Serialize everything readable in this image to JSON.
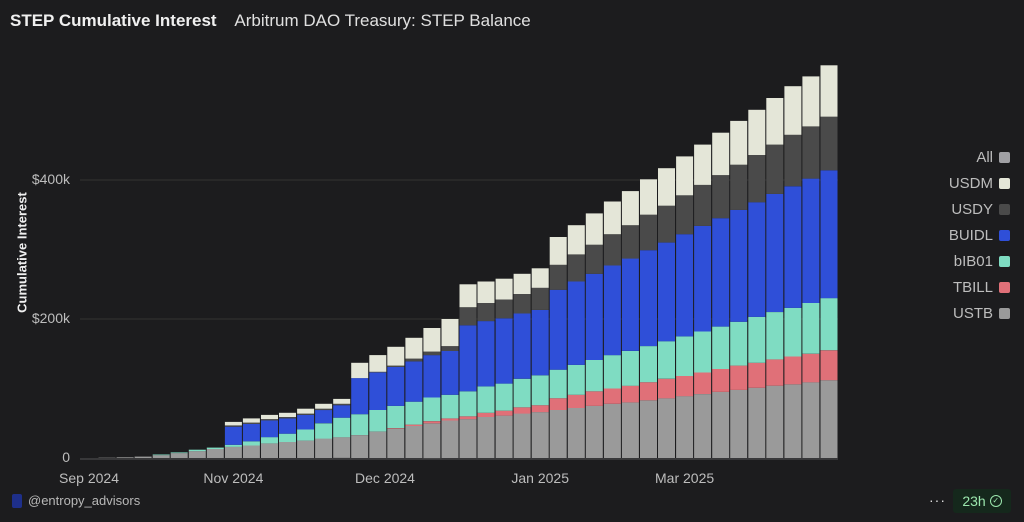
{
  "header": {
    "title": "STEP Cumulative Interest",
    "subtitle": "Arbitrum DAO Treasury: STEP Balance"
  },
  "footer": {
    "author": "@entropy_advisors",
    "more": "···",
    "freshness": "23h"
  },
  "chart_data": {
    "type": "bar",
    "stacked": true,
    "title": "STEP Cumulative Interest",
    "xlabel": "",
    "ylabel": "Cumulative Interest",
    "ylim": [
      0,
      600
    ],
    "y_ticks": [
      {
        "label": "0",
        "value": 0
      },
      {
        "label": "$200k",
        "value": 200
      },
      {
        "label": "$400k",
        "value": 400
      }
    ],
    "x_ticks": [
      {
        "label": "Sep 2024",
        "index": 0
      },
      {
        "label": "Nov 2024",
        "index": 8
      },
      {
        "label": "Dec 2024",
        "index": 16.4
      },
      {
        "label": "Jan 2025",
        "index": 25
      },
      {
        "label": "Mar 2025",
        "index": 33
      }
    ],
    "units": "thousands USD",
    "legend_position": "right",
    "legend": [
      {
        "name": "All",
        "color": "#a0a0a4"
      },
      {
        "name": "USDM",
        "color": "#e4e6d8"
      },
      {
        "name": "USDY",
        "color": "#4a4a4a"
      },
      {
        "name": "BUIDL",
        "color": "#2f4fd8"
      },
      {
        "name": "bIB01",
        "color": "#7fdcc2"
      },
      {
        "name": "TBILL",
        "color": "#e07078"
      },
      {
        "name": "USTB",
        "color": "#9a9a9a"
      }
    ],
    "series": [
      {
        "name": "USTB",
        "color": "#9a9a9a",
        "values": [
          0,
          0.5,
          1,
          2,
          4,
          7,
          10,
          13,
          16,
          18,
          21,
          23,
          25,
          28,
          30,
          33,
          38,
          42,
          46,
          50,
          54,
          56,
          59,
          61,
          64,
          66,
          69,
          72,
          75,
          78,
          80,
          83,
          86,
          89,
          92,
          95,
          98,
          101,
          104,
          106,
          109,
          112
        ]
      },
      {
        "name": "TBILL",
        "color": "#e07078",
        "values": [
          0,
          0,
          0,
          0,
          0,
          0,
          0,
          0,
          0,
          0,
          0,
          0,
          0,
          0,
          0,
          0,
          0,
          1,
          2,
          3,
          3,
          4,
          6,
          7,
          9,
          10,
          17,
          19,
          21,
          22,
          24,
          26,
          28,
          29,
          31,
          33,
          35,
          36,
          38,
          40,
          41,
          43
        ]
      },
      {
        "name": "bIB01",
        "color": "#7fdcc2",
        "values": [
          0,
          0,
          0,
          0,
          1,
          1,
          2,
          2,
          3,
          6,
          9,
          12,
          16,
          22,
          28,
          30,
          31,
          32,
          33,
          34,
          34,
          36,
          38,
          39,
          41,
          43,
          41,
          43,
          45,
          48,
          50,
          52,
          54,
          57,
          59,
          61,
          63,
          66,
          68,
          70,
          73,
          75
        ]
      },
      {
        "name": "BUIDL",
        "color": "#2f4fd8",
        "values": [
          0,
          0,
          0,
          0,
          0,
          0,
          0,
          0,
          26,
          25,
          24,
          22,
          21,
          19,
          18,
          52,
          54,
          56,
          58,
          61,
          63,
          95,
          94,
          94,
          94,
          94,
          115,
          120,
          124,
          129,
          133,
          138,
          142,
          147,
          152,
          156,
          161,
          165,
          170,
          175,
          179,
          184
        ]
      },
      {
        "name": "USDY",
        "color": "#4a4a4a",
        "values": [
          0,
          0,
          0,
          0,
          0,
          0,
          0,
          0,
          2,
          2,
          2,
          2,
          2,
          2,
          2,
          0,
          1,
          2,
          4,
          5,
          7,
          26,
          26,
          27,
          28,
          32,
          36,
          39,
          42,
          45,
          48,
          51,
          53,
          56,
          59,
          62,
          65,
          68,
          71,
          74,
          75,
          77
        ]
      },
      {
        "name": "USDM",
        "color": "#e4e6d8",
        "values": [
          0,
          0,
          0,
          0,
          0,
          0,
          0,
          0,
          5,
          6,
          6,
          6,
          7,
          7,
          7,
          22,
          24,
          27,
          30,
          34,
          39,
          33,
          31,
          30,
          29,
          28,
          40,
          42,
          45,
          47,
          49,
          51,
          54,
          56,
          58,
          61,
          63,
          65,
          67,
          70,
          72,
          74
        ]
      }
    ]
  }
}
